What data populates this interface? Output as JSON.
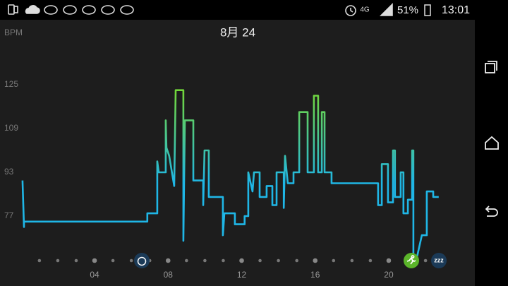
{
  "status_bar": {
    "battery": "51%",
    "time": "13:01",
    "network": "4G"
  },
  "chart_data": {
    "type": "line",
    "title": "8月 24",
    "y_label": "BPM",
    "sleep_label": "zzz",
    "xlim": [
      0,
      24
    ],
    "ylim": [
      60,
      130
    ],
    "yticks": [
      77,
      93,
      109,
      125
    ],
    "xticks": [
      {
        "value": 4,
        "label": "04"
      },
      {
        "value": 8,
        "label": "08"
      },
      {
        "value": 12,
        "label": "12"
      },
      {
        "value": 16,
        "label": "16"
      },
      {
        "value": 20,
        "label": "20"
      }
    ],
    "xminor_ticks": [
      1,
      2,
      3,
      5,
      6,
      7,
      9,
      10,
      11,
      13,
      14,
      15,
      17,
      18,
      19,
      21,
      22,
      23
    ],
    "series": [
      {
        "name": "BPM",
        "color": "#1fb6e6",
        "high_color": "#72d63a",
        "x": [
          0.08,
          0.16,
          0.16,
          6.87,
          6.87,
          7.41,
          7.41,
          7.49,
          7.87,
          7.87,
          7.91,
          8.06,
          8.33,
          8.41,
          8.83,
          8.83,
          8.91,
          9.37,
          9.37,
          9.91,
          9.91,
          9.98,
          10.21,
          10.21,
          10.98,
          10.98,
          11.06,
          11.63,
          11.63,
          12.16,
          12.16,
          12.36,
          12.36,
          12.59,
          12.67,
          12.98,
          12.98,
          13.36,
          13.36,
          13.67,
          13.67,
          13.9,
          13.9,
          14.29,
          14.29,
          14.36,
          14.51,
          14.82,
          14.82,
          15.13,
          15.13,
          15.59,
          15.59,
          15.93,
          15.93,
          16.16,
          16.16,
          16.36,
          16.36,
          16.51,
          16.51,
          16.89,
          16.89,
          19.42,
          19.42,
          19.62,
          19.62,
          19.96,
          19.96,
          20.23,
          20.23,
          20.34,
          20.34,
          20.65,
          20.65,
          20.8,
          20.8,
          21.04,
          21.04,
          21.27,
          21.27,
          21.34,
          21.34,
          21.5,
          21.8,
          22.07,
          22.07,
          22.42,
          22.42,
          22.72
        ],
        "values": [
          90,
          73,
          75,
          75,
          78,
          78,
          97,
          93,
          93,
          112,
          102,
          99,
          88,
          123,
          123,
          68,
          112,
          112,
          90,
          90,
          81,
          101,
          101,
          84,
          84,
          70,
          78,
          78,
          74,
          74,
          77,
          77,
          93,
          86,
          93,
          93,
          84,
          84,
          88,
          88,
          81,
          81,
          93,
          93,
          80,
          99,
          89,
          89,
          93,
          93,
          115,
          115,
          93,
          93,
          121,
          121,
          93,
          93,
          115,
          115,
          93,
          93,
          89,
          89,
          81,
          81,
          96,
          96,
          82,
          82,
          101,
          101,
          84,
          84,
          93,
          93,
          78,
          78,
          83,
          83,
          101,
          101,
          61,
          61,
          70,
          70,
          86,
          86,
          84,
          84
        ]
      }
    ]
  }
}
